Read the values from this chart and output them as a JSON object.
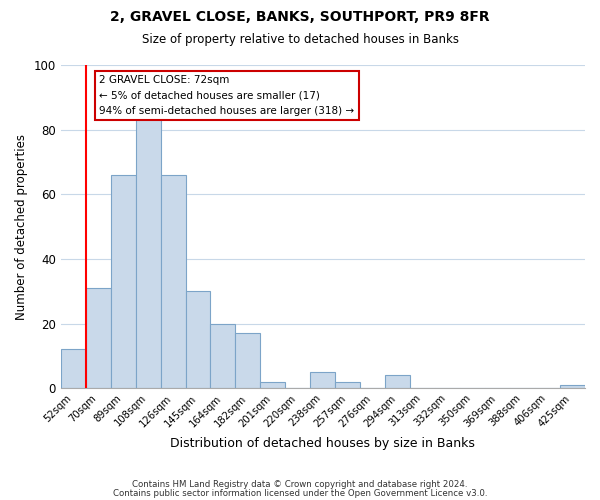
{
  "title": "2, GRAVEL CLOSE, BANKS, SOUTHPORT, PR9 8FR",
  "subtitle": "Size of property relative to detached houses in Banks",
  "xlabel": "Distribution of detached houses by size in Banks",
  "ylabel": "Number of detached properties",
  "bar_labels": [
    "52sqm",
    "70sqm",
    "89sqm",
    "108sqm",
    "126sqm",
    "145sqm",
    "164sqm",
    "182sqm",
    "201sqm",
    "220sqm",
    "238sqm",
    "257sqm",
    "276sqm",
    "294sqm",
    "313sqm",
    "332sqm",
    "350sqm",
    "369sqm",
    "388sqm",
    "406sqm",
    "425sqm"
  ],
  "bar_values": [
    12,
    31,
    66,
    84,
    66,
    30,
    20,
    17,
    2,
    0,
    5,
    2,
    0,
    4,
    0,
    0,
    0,
    0,
    0,
    0,
    1
  ],
  "bar_color": "#c9d9ea",
  "bar_edge_color": "#7ca4c8",
  "ylim": [
    0,
    100
  ],
  "red_line_x": 0.5,
  "annotation_title": "2 GRAVEL CLOSE: 72sqm",
  "annotation_line1": "← 5% of detached houses are smaller (17)",
  "annotation_line2": "94% of semi-detached houses are larger (318) →",
  "box_edge_color": "#cc0000",
  "grid_color": "#c8d8e8",
  "footer_line1": "Contains HM Land Registry data © Crown copyright and database right 2024.",
  "footer_line2": "Contains public sector information licensed under the Open Government Licence v3.0.",
  "bg_color": "#ffffff"
}
